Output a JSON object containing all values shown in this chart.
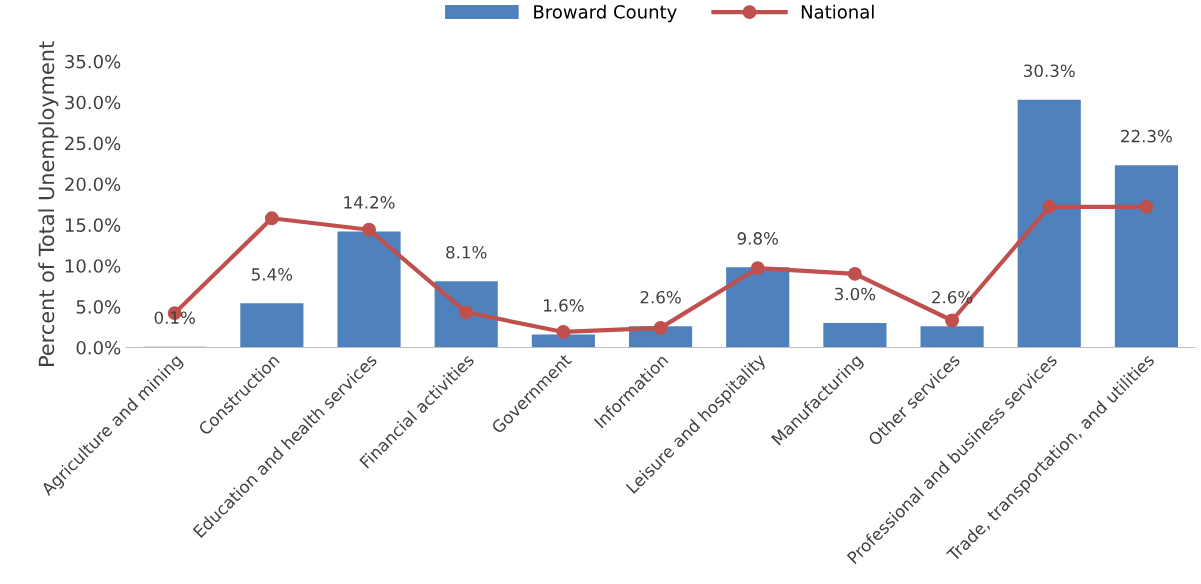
{
  "chart_data": {
    "type": "bar",
    "ylabel": "Percent of Total Unemployment",
    "categories": [
      "Agriculture and mining",
      "Construction",
      "Education and health services",
      "Financial activities",
      "Government",
      "Information",
      "Leisure and hospitality",
      "Manufacturing",
      "Other services",
      "Professional and business services",
      "Trade, transportation, and utilities"
    ],
    "series": [
      {
        "name": "Broward County",
        "color": "#4f81bd",
        "values": [
          0.1,
          5.4,
          14.2,
          8.1,
          1.6,
          2.6,
          9.8,
          3.0,
          2.6,
          30.3,
          22.3
        ],
        "value_labels": [
          "0.1%",
          "5.4%",
          "14.2%",
          "8.1%",
          "1.6%",
          "2.6%",
          "9.8%",
          "3.0%",
          "2.6%",
          "30.3%",
          "22.3%"
        ]
      },
      {
        "name": "National",
        "type": "line",
        "color": "#c0504d",
        "marker": "circle",
        "values": [
          4.2,
          15.8,
          14.4,
          4.3,
          1.9,
          2.4,
          9.7,
          9.0,
          3.3,
          17.2,
          17.2
        ]
      }
    ],
    "ylim": [
      0,
      35
    ],
    "yticks": [
      {
        "value": 0,
        "label": "0.0%"
      },
      {
        "value": 5,
        "label": "5.0%"
      },
      {
        "value": 10,
        "label": "10.0%"
      },
      {
        "value": 15,
        "label": "15.0%"
      },
      {
        "value": 20,
        "label": "20.0%"
      },
      {
        "value": 25,
        "label": "25.0%"
      },
      {
        "value": 30,
        "label": "30.0%"
      },
      {
        "value": 35,
        "label": "35.0%"
      }
    ],
    "grid": false,
    "legend": "top"
  }
}
